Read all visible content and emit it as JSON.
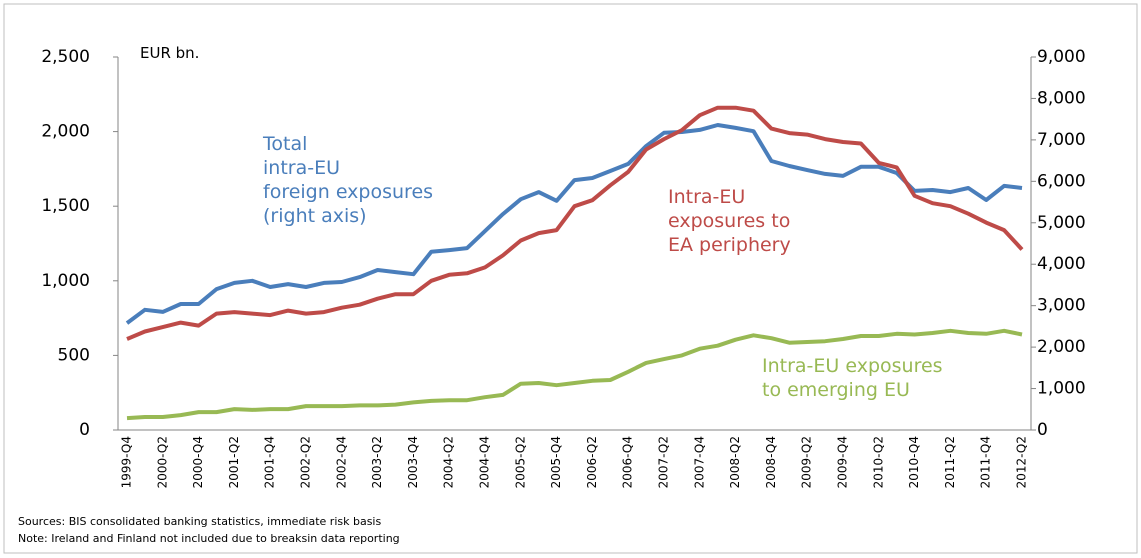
{
  "chart_data": {
    "type": "line",
    "y_label": "EUR bn.",
    "categories": [
      "1999-Q4",
      null,
      "2000-Q2",
      null,
      "2000-Q4",
      null,
      "2001-Q2",
      null,
      "2001-Q4",
      null,
      "2002-Q2",
      null,
      "2002-Q4",
      null,
      "2003-Q2",
      null,
      "2003-Q4",
      null,
      "2004-Q2",
      null,
      "2004-Q4",
      null,
      "2005-Q2",
      null,
      "2005-Q4",
      null,
      "2006-Q2",
      null,
      "2006-Q4",
      null,
      "2007-Q2",
      null,
      "2007-Q4",
      null,
      "2008-Q2",
      null,
      "2008-Q4",
      null,
      "2009-Q2",
      null,
      "2009-Q4",
      null,
      "2010-Q2",
      null,
      "2010-Q4",
      null,
      "2011-Q2",
      null,
      "2011-Q4",
      null,
      "2012-Q2"
    ],
    "ylim": [
      0,
      2500
    ],
    "yticks": [
      0,
      500,
      {
        "value": 1000,
        "label": "1,000"
      },
      {
        "value": 1500,
        "label": "1,500"
      },
      {
        "value": 2000,
        "label": "2,000"
      },
      {
        "value": 2500,
        "label": "2,500"
      }
    ],
    "y2lim": [
      0,
      9000
    ],
    "y2ticks": [
      0,
      {
        "value": 1000,
        "label": "1,000"
      },
      {
        "value": 2000,
        "label": "2,000"
      },
      {
        "value": 3000,
        "label": "3,000"
      },
      {
        "value": 4000,
        "label": "4,000"
      },
      {
        "value": 5000,
        "label": "5,000"
      },
      {
        "value": 6000,
        "label": "6,000"
      },
      {
        "value": 7000,
        "label": "7,000"
      },
      {
        "value": 8000,
        "label": "8,000"
      },
      {
        "value": 9000,
        "label": "9,000"
      }
    ],
    "grid": false,
    "series": [
      {
        "name": [
          "Total",
          "intra-EU",
          "foreign exposures",
          "(right axis)"
        ],
        "color": "#4a7ebb",
        "axis": "y2",
        "values": [
          2580,
          2900,
          2850,
          3040,
          3040,
          3400,
          3550,
          3600,
          3450,
          3520,
          3450,
          3550,
          3570,
          3690,
          3860,
          3810,
          3760,
          4300,
          4340,
          4390,
          4800,
          5210,
          5570,
          5740,
          5530,
          6030,
          6080,
          6250,
          6420,
          6850,
          7170,
          7190,
          7240,
          7360,
          7290,
          7210,
          6490,
          6370,
          6270,
          6180,
          6130,
          6350,
          6350,
          6200,
          5770,
          5790,
          5740,
          5840,
          5550,
          5890,
          5840
        ]
      },
      {
        "name": [
          "Intra-EU",
          "exposures to",
          "EA periphery"
        ],
        "color": "#be4b48",
        "values": [
          610,
          660,
          690,
          720,
          700,
          780,
          790,
          780,
          770,
          800,
          780,
          790,
          820,
          840,
          880,
          910,
          910,
          1000,
          1040,
          1050,
          1090,
          1170,
          1270,
          1320,
          1340,
          1500,
          1540,
          1640,
          1730,
          1880,
          1950,
          2010,
          2110,
          2160,
          2160,
          2140,
          2020,
          1990,
          1980,
          1950,
          1930,
          1920,
          1790,
          1760,
          1570,
          1520,
          1500,
          1450,
          1390,
          1340,
          1210
        ]
      },
      {
        "name": [
          "Intra-EU exposures",
          "to emerging EU"
        ],
        "color": "#98b954",
        "values": [
          80,
          87,
          87,
          100,
          120,
          120,
          140,
          135,
          140,
          140,
          160,
          160,
          160,
          165,
          165,
          170,
          185,
          195,
          200,
          200,
          220,
          235,
          310,
          315,
          300,
          315,
          330,
          335,
          390,
          450,
          475,
          500,
          545,
          565,
          605,
          635,
          615,
          585,
          590,
          595,
          610,
          630,
          630,
          645,
          640,
          650,
          665,
          650,
          645,
          665,
          640
        ]
      }
    ],
    "notes": [
      "Sources: BIS consolidated banking statistics, immediate risk basis",
      "Note: Ireland and Finland not included due to breaksin data reporting"
    ]
  }
}
